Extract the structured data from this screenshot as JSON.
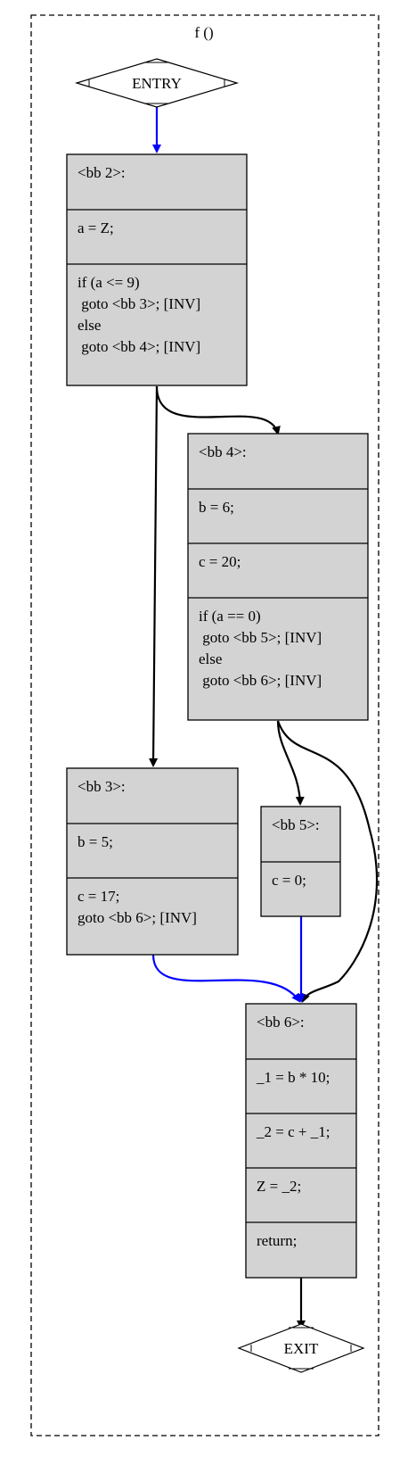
{
  "function_label": "f ()",
  "entry": {
    "label": "ENTRY"
  },
  "exit": {
    "label": "EXIT"
  },
  "blocks": {
    "bb2": {
      "sections": [
        [
          "<bb 2>:"
        ],
        [
          "a = Z;"
        ],
        [
          "if (a <= 9)",
          " goto <bb 3>; [INV]",
          "else",
          " goto <bb 4>; [INV]"
        ]
      ]
    },
    "bb4": {
      "sections": [
        [
          "<bb 4>:"
        ],
        [
          "b = 6;"
        ],
        [
          "c = 20;"
        ],
        [
          "if (a == 0)",
          " goto <bb 5>; [INV]",
          "else",
          " goto <bb 6>; [INV]"
        ]
      ]
    },
    "bb3": {
      "sections": [
        [
          "<bb 3>:"
        ],
        [
          "b = 5;"
        ],
        [
          "c = 17;",
          "goto <bb 6>; [INV]"
        ]
      ]
    },
    "bb5": {
      "sections": [
        [
          "<bb 5>:"
        ],
        [
          "c = 0;"
        ]
      ]
    },
    "bb6": {
      "sections": [
        [
          "<bb 6>:"
        ],
        [
          "_1 = b * 10;"
        ],
        [
          "_2 = c + _1;"
        ],
        [
          "Z = _2;"
        ],
        [
          "return;"
        ]
      ]
    }
  },
  "edges": [
    {
      "from": "entry",
      "to": "bb2",
      "kind": "fallthru",
      "color": "#0000ff"
    },
    {
      "from": "bb2",
      "to": "bb4",
      "kind": "branch",
      "color": "#000000"
    },
    {
      "from": "bb2",
      "to": "bb3",
      "kind": "branch",
      "color": "#000000"
    },
    {
      "from": "bb4",
      "to": "bb5",
      "kind": "branch",
      "color": "#000000"
    },
    {
      "from": "bb4",
      "to": "bb6",
      "kind": "branch",
      "color": "#000000"
    },
    {
      "from": "bb3",
      "to": "bb6",
      "kind": "fallthru",
      "color": "#0000ff"
    },
    {
      "from": "bb5",
      "to": "bb6",
      "kind": "fallthru",
      "color": "#0000ff"
    },
    {
      "from": "bb6",
      "to": "exit",
      "kind": "branch",
      "color": "#000000"
    }
  ],
  "colors": {
    "block_fill": "#d3d3d3",
    "border": "#000000",
    "fallthru_edge": "#0000ff",
    "branch_edge": "#000000"
  }
}
